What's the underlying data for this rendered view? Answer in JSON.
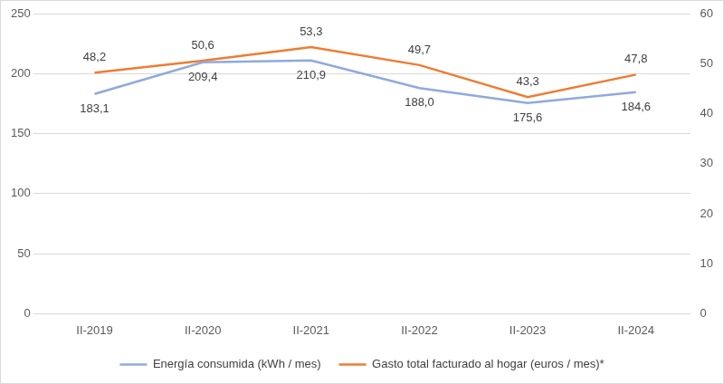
{
  "chart_data": {
    "type": "line",
    "categories": [
      "II-2019",
      "II-2020",
      "II-2021",
      "II-2022",
      "II-2023",
      "II-2024"
    ],
    "series": [
      {
        "name": "Energía consumida (kWh / mes)",
        "color": "#8faadc",
        "axis": "y",
        "values": [
          183.1,
          209.4,
          210.9,
          188.0,
          175.6,
          184.6
        ],
        "value_labels": [
          "183,1",
          "209,4",
          "210,9",
          "188,0",
          "175,6",
          "184,6"
        ]
      },
      {
        "name": "Gasto total facturado al hogar (euros / mes)*",
        "color": "#ed7d31",
        "axis": "y2",
        "values": [
          48.2,
          50.6,
          53.3,
          49.7,
          43.3,
          47.8
        ],
        "value_labels": [
          "48,2",
          "50,6",
          "53,3",
          "49,7",
          "43,3",
          "47,8"
        ]
      }
    ],
    "ylim": [
      0,
      250
    ],
    "yticks": [
      0,
      50,
      100,
      150,
      200,
      250
    ],
    "y2lim": [
      0,
      60
    ],
    "y2ticks": [
      0,
      10,
      20,
      30,
      40,
      50,
      60
    ],
    "grid": true,
    "legend": "bottom",
    "data_labels": true
  }
}
